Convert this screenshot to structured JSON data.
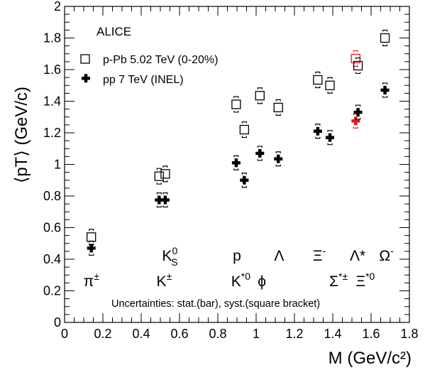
{
  "chart_data": {
    "type": "scatter",
    "xlabel": "M (GeV/c²)",
    "ylabel": "⟨pT⟩ (GeV/c)",
    "xlim": [
      0,
      1.8
    ],
    "ylim": [
      0,
      2
    ],
    "x_ticks": [
      "0",
      "0.2",
      "0.4",
      "0.6",
      "0.8",
      "1",
      "1.2",
      "1.4",
      "1.6",
      "1.8"
    ],
    "y_ticks": [
      "0",
      "0.2",
      "0.4",
      "0.6",
      "0.8",
      "1",
      "1.2",
      "1.4",
      "1.6",
      "1.8",
      "2"
    ],
    "header": "ALICE",
    "note": "Uncertainties: stat.(bar), syst.(square bracket)",
    "highlight_color": "#e8141c",
    "series": [
      {
        "name": "p-Pb 5.02 TeV (0-20%)",
        "marker": "open-square",
        "points": [
          {
            "x": 0.1396,
            "y": 0.54
          },
          {
            "x": 0.4937,
            "y": 0.925
          },
          {
            "x": 0.5256,
            "y": 0.94
          },
          {
            "x": 0.8959,
            "y": 1.38
          },
          {
            "x": 0.9383,
            "y": 1.22
          },
          {
            "x": 1.0195,
            "y": 1.435
          },
          {
            "x": 1.1157,
            "y": 1.36
          },
          {
            "x": 1.3217,
            "y": 1.535
          },
          {
            "x": 1.3853,
            "y": 1.5
          },
          {
            "x": 1.5195,
            "y": 1.67,
            "highlight": true
          },
          {
            "x": 1.5318,
            "y": 1.625
          },
          {
            "x": 1.6725,
            "y": 1.8
          }
        ]
      },
      {
        "name": "pp 7 TeV (INEL)",
        "marker": "filled-cross",
        "points": [
          {
            "x": 0.1396,
            "y": 0.47
          },
          {
            "x": 0.4937,
            "y": 0.775
          },
          {
            "x": 0.5256,
            "y": 0.775
          },
          {
            "x": 0.8959,
            "y": 1.01
          },
          {
            "x": 0.9383,
            "y": 0.9
          },
          {
            "x": 1.0195,
            "y": 1.07
          },
          {
            "x": 1.1157,
            "y": 1.035
          },
          {
            "x": 1.3217,
            "y": 1.21
          },
          {
            "x": 1.3853,
            "y": 1.17
          },
          {
            "x": 1.5195,
            "y": 1.275,
            "highlight": true
          },
          {
            "x": 1.5318,
            "y": 1.33
          },
          {
            "x": 1.6725,
            "y": 1.47
          }
        ]
      }
    ],
    "particle_labels": [
      {
        "text": "π",
        "sup": "±",
        "x": 0.14,
        "y": 0.23
      },
      {
        "text": "K",
        "sub": "S",
        "sup": "0",
        "x": 0.55,
        "y": 0.39
      },
      {
        "text": "K",
        "sup": "±",
        "x": 0.52,
        "y": 0.23
      },
      {
        "text": "p",
        "x": 0.9,
        "y": 0.39
      },
      {
        "text": "K",
        "sup": "*0",
        "x": 0.92,
        "y": 0.23
      },
      {
        "text": "ϕ",
        "x": 1.03,
        "y": 0.23
      },
      {
        "text": "Λ",
        "x": 1.12,
        "y": 0.39
      },
      {
        "text": "Ξ",
        "sup": "-",
        "x": 1.33,
        "y": 0.39
      },
      {
        "text": "Σ",
        "sup": "*±",
        "x": 1.43,
        "y": 0.23
      },
      {
        "text": "Λ*",
        "x": 1.53,
        "y": 0.39,
        "highlight": true
      },
      {
        "text": "Ξ",
        "sup": "*0",
        "x": 1.57,
        "y": 0.23
      },
      {
        "text": "Ω",
        "sup": "-",
        "x": 1.68,
        "y": 0.39
      }
    ]
  }
}
